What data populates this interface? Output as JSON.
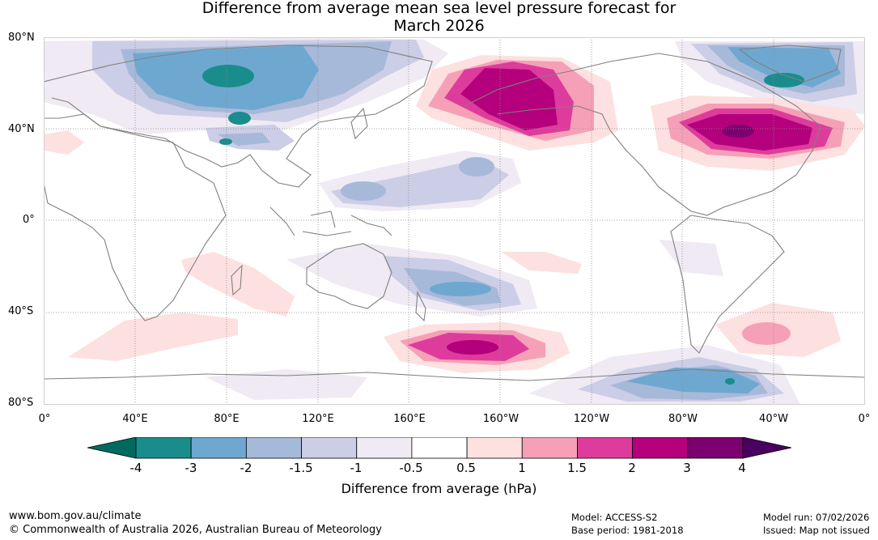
{
  "title": {
    "line1": "Difference from average mean sea level pressure forecast for",
    "line2": "March 2026"
  },
  "axes": {
    "lat_labels": [
      "80°N",
      "40°N",
      "0°",
      "40°S",
      "80°S"
    ],
    "lon_labels": [
      "0°",
      "40°E",
      "80°E",
      "120°E",
      "160°E",
      "160°W",
      "120°W",
      "80°W",
      "40°W",
      "0°"
    ]
  },
  "colorbar": {
    "title": "Difference from average (hPa)",
    "ticks": [
      "-4",
      "-3",
      "-2",
      "-1.5",
      "-1",
      "-0.5",
      "0.5",
      "1",
      "1.5",
      "2",
      "3",
      "4"
    ],
    "colors": [
      "#1a8c8c",
      "#6ea8d0",
      "#a6b9d9",
      "#cccde6",
      "#efeaf3",
      "#ffffff",
      "#fde0e0",
      "#f6a0b8",
      "#de3c9c",
      "#b4007c",
      "#7c0070"
    ],
    "under_color": "#006a60",
    "over_color": "#4a0060"
  },
  "footer": {
    "url": "www.bom.gov.au/climate",
    "copyright": "© Commonwealth of Australia 2026, Australian Bureau of Meteorology",
    "model": "Model: ACCESS-S2",
    "base_period": "Base period: 1981-2018",
    "model_run": "Model run: 07/02/2026",
    "issued": "Issued: Map not issued"
  }
}
